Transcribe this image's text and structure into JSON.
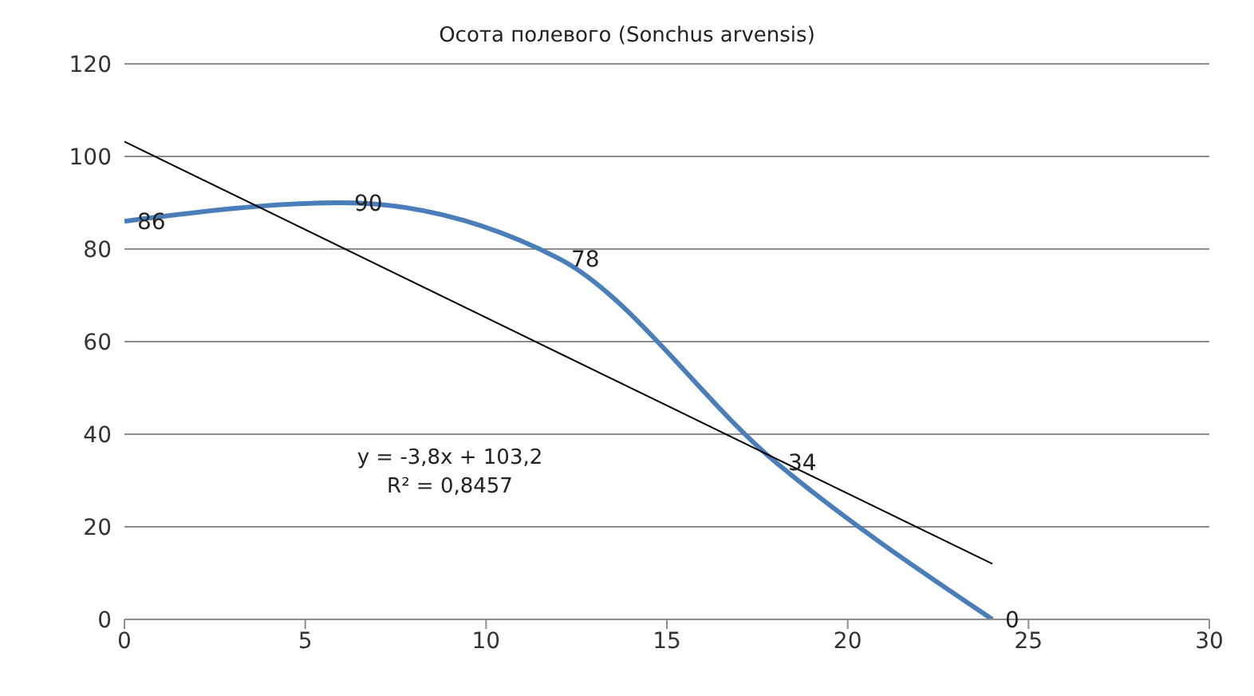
{
  "chart_data": {
    "type": "line",
    "title": "Осота полевого (Sonchus arvensis)",
    "x": [
      0,
      6,
      12,
      18,
      24
    ],
    "series": [
      {
        "color": "#4a7ebb",
        "values": [
          86,
          90,
          78,
          34,
          0
        ],
        "data_labels": true
      },
      {
        "type": "line",
        "x": [
          0,
          24
        ],
        "color": "#000000",
        "values": [
          103.2,
          12
        ]
      }
    ],
    "annotations": [
      "y = -3,8x + 103,2",
      "R² = 0,8457"
    ],
    "xlim": [
      0,
      30
    ],
    "xticks": [
      0,
      5,
      10,
      15,
      20,
      25,
      30
    ],
    "ylim": [
      0,
      120
    ],
    "yticks": [
      0,
      20,
      40,
      60,
      80,
      100,
      120
    ],
    "grid": "y",
    "marker": "none",
    "line_style": "solid"
  }
}
